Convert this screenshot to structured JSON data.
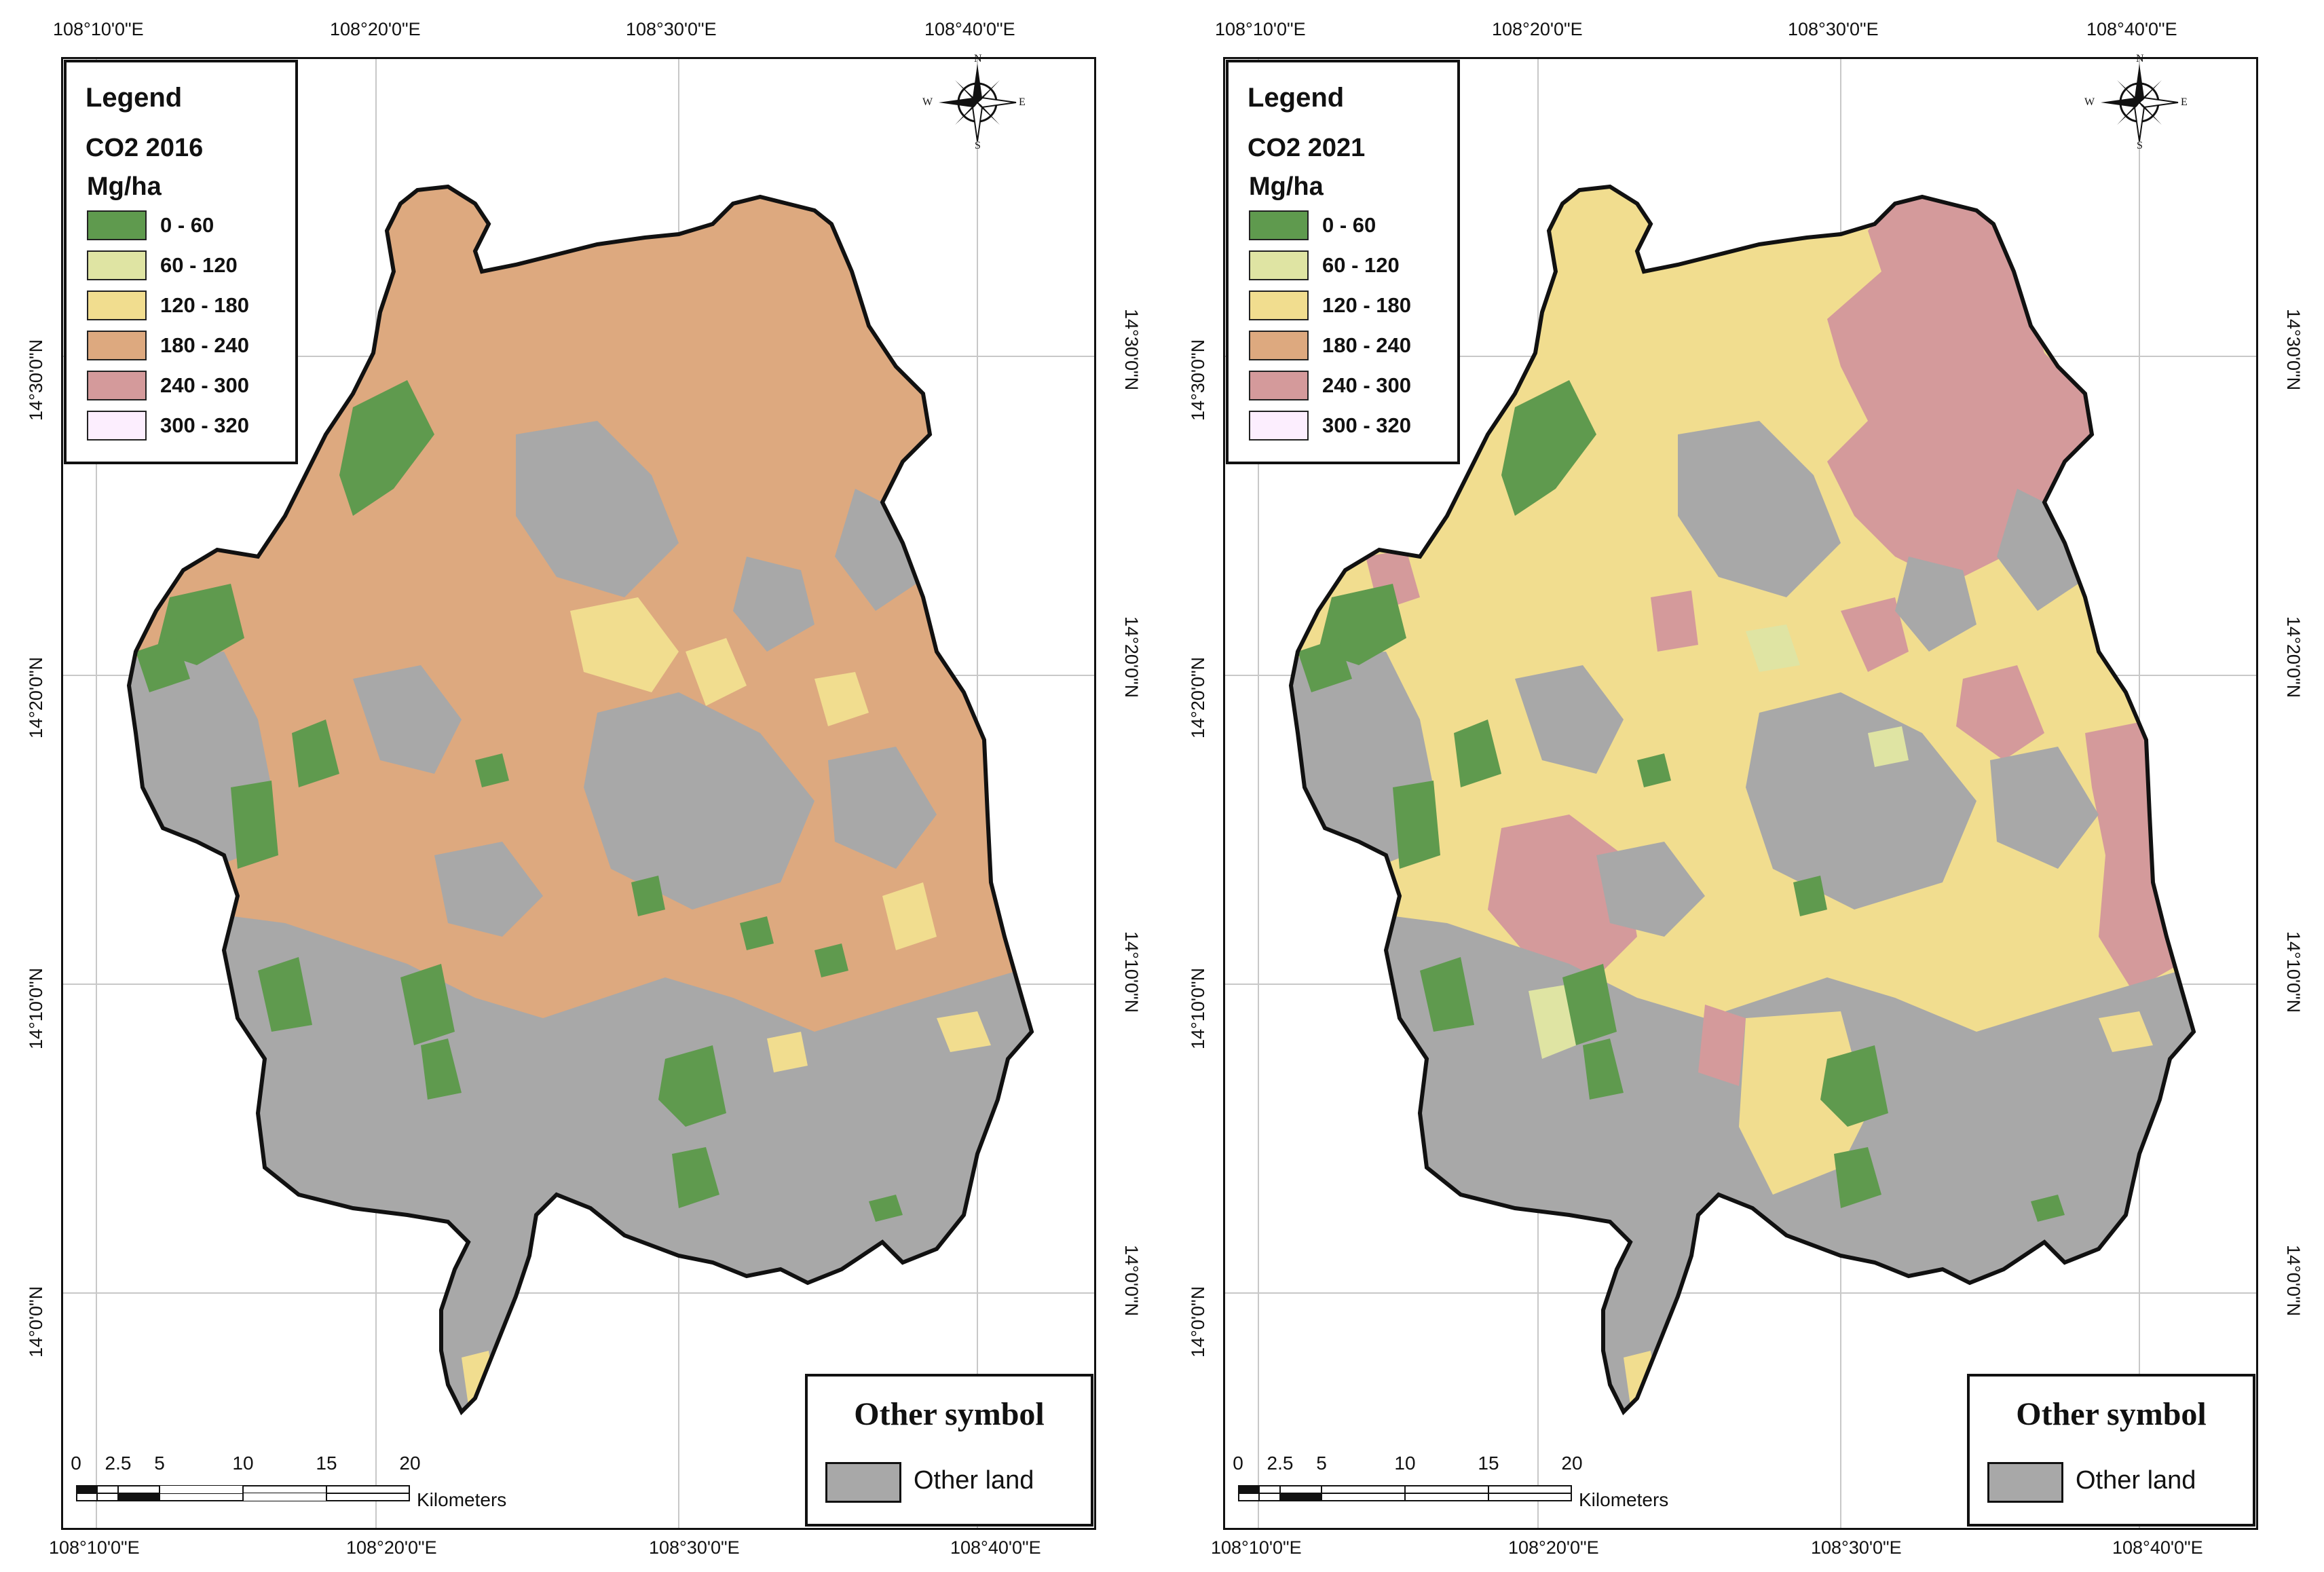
{
  "axes": {
    "top_lon": [
      "108°10'0\"E",
      "108°20'0\"E",
      "108°30'0\"E",
      "108°40'0\"E"
    ],
    "bottom_lon": [
      "108°10'0\"E",
      "108°20'0\"E",
      "108°30'0\"E",
      "108°40'0\"E"
    ],
    "left_lat": [
      "14°30'0\"N",
      "14°20'0\"N",
      "14°10'0\"N",
      "14°0'0\"N"
    ],
    "right_lat": [
      "14°30'0\"N",
      "14°20'0\"N",
      "14°10'0\"N",
      "14°0'0\"N"
    ]
  },
  "north_arrow": {
    "n": "N",
    "s": "S",
    "e": "E",
    "w": "W"
  },
  "legend_items": [
    {
      "label": "0 - 60",
      "color": "#5f9a4e"
    },
    {
      "label": "60 - 120",
      "color": "#dfe4a3"
    },
    {
      "label": "120 - 180",
      "color": "#f1dd8f"
    },
    {
      "label": "180 - 240",
      "color": "#dda97f"
    },
    {
      "label": "240 - 300",
      "color": "#d49a9b"
    },
    {
      "label": "300 - 320",
      "color": "#fceefe"
    }
  ],
  "other_land_color": "#a8a8a8",
  "scalebar": {
    "ticks": [
      "0",
      "2.5",
      "5",
      "10",
      "15",
      "20"
    ],
    "units": "Kilometers"
  },
  "panels": [
    {
      "legend_title": "Legend",
      "legend_subtitle": "CO2 2016",
      "legend_unit": "Mg/ha",
      "other_symbol_title": "Other symbol",
      "other_symbol_label": "Other land",
      "dominant_class": "180 - 240",
      "base_color": "#dda97f"
    },
    {
      "legend_title": "Legend",
      "legend_subtitle": "CO2 2021",
      "legend_unit": "Mg/ha",
      "other_symbol_title": "Other symbol",
      "other_symbol_label": "Other land",
      "dominant_class": "120 - 180",
      "base_color": "#f1dd8f"
    }
  ]
}
